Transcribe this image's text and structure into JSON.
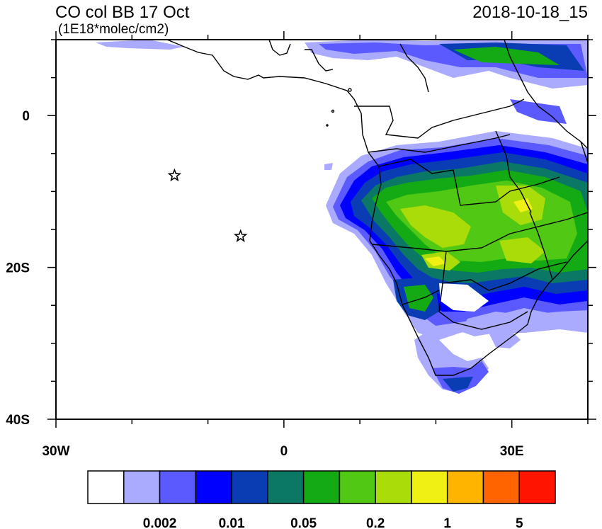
{
  "header": {
    "title": "CO col BB 17 Oct",
    "units": "(1E18*molec/cm2)",
    "timestamp": "2018-10-18_15"
  },
  "axes": {
    "lat_labels": [
      {
        "lat": 0,
        "text": "0"
      },
      {
        "lat": -20,
        "text": "20S"
      },
      {
        "lat": -40,
        "text": "40S"
      }
    ],
    "lon_labels": [
      {
        "lon": -30,
        "text": "30W"
      },
      {
        "lon": 0,
        "text": "0"
      },
      {
        "lon": 30,
        "text": "30E"
      }
    ],
    "lon_range": [
      -30,
      40
    ],
    "lat_range": [
      -40,
      10
    ]
  },
  "colorbar": {
    "colors": [
      "#ffffff",
      "#aaaaff",
      "#5a5aff",
      "#0000ff",
      "#0a3cb4",
      "#0a7864",
      "#14aa14",
      "#50c814",
      "#aadc0a",
      "#f0f014",
      "#ffb400",
      "#ff6400",
      "#ff1400"
    ],
    "labels": [
      {
        "boundary": 2,
        "text": "0.002"
      },
      {
        "boundary": 4,
        "text": "0.01"
      },
      {
        "boundary": 6,
        "text": "0.05"
      },
      {
        "boundary": 8,
        "text": "0.2"
      },
      {
        "boundary": 10,
        "text": "1"
      },
      {
        "boundary": 12,
        "text": "5"
      }
    ]
  },
  "markers": [
    {
      "name": "st-helena-star",
      "lon": -14.4,
      "lat": -7.9
    },
    {
      "name": "ascension-star",
      "lon": -5.7,
      "lat": -15.9
    }
  ]
}
